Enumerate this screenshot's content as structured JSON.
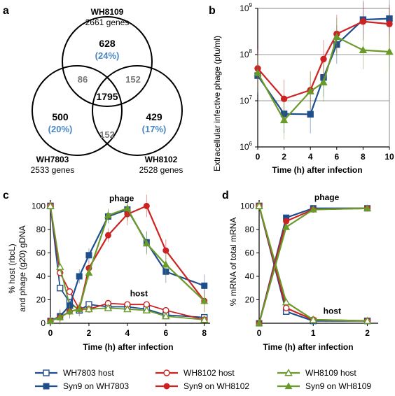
{
  "panels": {
    "a": {
      "letter": "a",
      "circles": [
        {
          "name": "WH8109",
          "total": "2661 genes"
        },
        {
          "name": "WH7803",
          "total": "2533 genes"
        },
        {
          "name": "WH8102",
          "total": "2528 genes"
        }
      ],
      "regions": [
        {
          "id": "only-wh8109",
          "count": "628",
          "pct": "(24%)"
        },
        {
          "id": "only-wh7803",
          "count": "500",
          "pct": "(20%)"
        },
        {
          "id": "only-wh8102",
          "count": "429",
          "pct": "(17%)"
        },
        {
          "id": "wh8109-wh7803",
          "count": "86"
        },
        {
          "id": "wh8109-wh8102",
          "count": "152"
        },
        {
          "id": "wh7803-wh8102",
          "count": "152"
        },
        {
          "id": "core",
          "count": "1795"
        }
      ]
    },
    "b": {
      "letter": "b"
    },
    "c": {
      "letter": "c"
    },
    "d": {
      "letter": "d"
    }
  },
  "legend": [
    {
      "label": "WH7803 host",
      "color": "#1f4e8c",
      "marker": "square-open"
    },
    {
      "label": "WH8102 host",
      "color": "#cc2222",
      "marker": "circle-open"
    },
    {
      "label": "WH8109 host",
      "color": "#6a9a2a",
      "marker": "triangle-open"
    },
    {
      "label": "Syn9 on WH7803",
      "color": "#1f4e8c",
      "marker": "square-filled"
    },
    {
      "label": "Syn9 on WH8102",
      "color": "#cc2222",
      "marker": "circle-filled"
    },
    {
      "label": "Syn9 on WH8109",
      "color": "#6a9a2a",
      "marker": "triangle-filled"
    }
  ],
  "chart_data": [
    {
      "panel": "b",
      "type": "line",
      "xlabel": "Time (h) after infection",
      "ylabel": "Extracellular infective phage (pfu/ml)",
      "yscale": "log",
      "xlim": [
        0,
        10
      ],
      "ylim": [
        1000000,
        1000000000
      ],
      "xticks": [
        "0",
        "2",
        "4",
        "6",
        "8",
        "10"
      ],
      "yticks": [
        "10^6",
        "10^7",
        "10^8",
        "10^9"
      ],
      "grid": "horizontal",
      "series": [
        {
          "name": "Syn9 on WH7803",
          "color": "#1f4e8c",
          "marker": "square-filled",
          "x": [
            0,
            2,
            4,
            5,
            6,
            8,
            10
          ],
          "y": [
            35000000,
            5200000,
            5100000,
            32000000,
            165000000,
            570000000,
            600000000
          ],
          "err": [
            1,
            1,
            1,
            1,
            1,
            1,
            1
          ]
        },
        {
          "name": "Syn9 on WH8102",
          "color": "#cc2222",
          "marker": "circle-filled",
          "x": [
            0,
            2,
            4,
            5,
            6,
            8,
            10
          ],
          "y": [
            50000000,
            11000000,
            17000000,
            80000000,
            280000000,
            520000000,
            460000000
          ],
          "err": [
            1,
            1,
            1,
            1,
            1,
            1,
            1
          ]
        },
        {
          "name": "Syn9 on WH8109",
          "color": "#6a9a2a",
          "marker": "triangle-filled",
          "x": [
            0,
            2,
            4,
            5,
            6,
            8,
            10
          ],
          "y": [
            40000000,
            3800000,
            16000000,
            25000000,
            240000000,
            125000000,
            115000000
          ],
          "err": [
            1,
            1,
            1,
            1,
            1,
            1,
            1
          ]
        }
      ]
    },
    {
      "panel": "c",
      "type": "line",
      "xlabel": "Time (h) after infection",
      "ylabel_lines": [
        "% host (rbcL)",
        "and phage (g20) gDNA"
      ],
      "xlim": [
        0,
        8.3
      ],
      "ylim": [
        0,
        105
      ],
      "xticks": [
        "0",
        "2",
        "4",
        "6",
        "8"
      ],
      "yticks": [
        "0",
        "20",
        "40",
        "60",
        "80",
        "100"
      ],
      "annotations": [
        "phage",
        "host"
      ],
      "series": [
        {
          "name": "WH7803 host",
          "color": "#1f4e8c",
          "marker": "square-open",
          "x": [
            0,
            0.5,
            1,
            1.5,
            2,
            3,
            4,
            5,
            6,
            8
          ],
          "y": [
            100,
            30,
            18,
            11,
            16,
            14,
            14,
            12,
            7,
            5
          ]
        },
        {
          "name": "WH8102 host",
          "color": "#cc2222",
          "marker": "circle-open",
          "x": [
            0,
            0.5,
            1,
            1.5,
            2,
            3,
            4,
            5,
            6,
            8
          ],
          "y": [
            100,
            43,
            27,
            12,
            12,
            17,
            16,
            16,
            11,
            3
          ]
        },
        {
          "name": "WH8109 host",
          "color": "#6a9a2a",
          "marker": "triangle-open",
          "x": [
            0,
            0.5,
            1,
            1.5,
            2,
            3,
            4,
            5,
            6,
            8
          ],
          "y": [
            100,
            48,
            15,
            13,
            12,
            13,
            12,
            11,
            6,
            3
          ]
        },
        {
          "name": "Syn9 on WH7803",
          "color": "#1f4e8c",
          "marker": "square-filled",
          "x": [
            0,
            0.5,
            1,
            1.5,
            2,
            3,
            4,
            5,
            6,
            8
          ],
          "y": [
            2,
            6,
            15,
            40,
            58,
            91,
            97,
            69,
            44,
            32
          ]
        },
        {
          "name": "Syn9 on WH8102",
          "color": "#cc2222",
          "marker": "circle-filled",
          "x": [
            0,
            0.5,
            1,
            1.5,
            2,
            3,
            4,
            5,
            6,
            8
          ],
          "y": [
            2,
            5,
            10,
            12,
            47,
            75,
            93,
            100,
            62,
            19
          ]
        },
        {
          "name": "Syn9 on WH8109",
          "color": "#6a9a2a",
          "marker": "triangle-filled",
          "x": [
            0,
            0.5,
            1,
            1.5,
            2,
            3,
            4,
            5,
            6,
            8
          ],
          "y": [
            2,
            5,
            10,
            12,
            43,
            92,
            98,
            68,
            50,
            19
          ]
        }
      ]
    },
    {
      "panel": "d",
      "type": "line",
      "xlabel": "Time (h) after infection",
      "ylabel": "% mRNA of total mRNA",
      "xlim": [
        0,
        2.2
      ],
      "ylim": [
        0,
        105
      ],
      "xticks": [
        "0",
        "1",
        "2"
      ],
      "yticks": [
        "20",
        "40",
        "60",
        "80",
        "100"
      ],
      "annotations": [
        "phage",
        "host"
      ],
      "series": [
        {
          "name": "WH7803 host",
          "color": "#1f4e8c",
          "marker": "square-open",
          "x": [
            0,
            0.5,
            1,
            2
          ],
          "y": [
            100,
            10,
            2,
            2
          ]
        },
        {
          "name": "WH8102 host",
          "color": "#cc2222",
          "marker": "circle-open",
          "x": [
            0,
            0.5,
            1,
            2
          ],
          "y": [
            100,
            13,
            3,
            2
          ]
        },
        {
          "name": "WH8109 host",
          "color": "#6a9a2a",
          "marker": "triangle-open",
          "x": [
            0,
            0.5,
            1,
            2
          ],
          "y": [
            100,
            18,
            3,
            2
          ]
        },
        {
          "name": "Syn9 on WH7803",
          "color": "#1f4e8c",
          "marker": "square-filled",
          "x": [
            0,
            0.5,
            1,
            2
          ],
          "y": [
            0,
            90,
            98,
            98
          ]
        },
        {
          "name": "Syn9 on WH8102",
          "color": "#cc2222",
          "marker": "circle-filled",
          "x": [
            0,
            0.5,
            1,
            2
          ],
          "y": [
            0,
            87,
            97,
            98
          ]
        },
        {
          "name": "Syn9 on WH8109",
          "color": "#6a9a2a",
          "marker": "triangle-filled",
          "x": [
            0,
            0.5,
            1,
            2
          ],
          "y": [
            0,
            82,
            97,
            98
          ]
        }
      ]
    }
  ]
}
